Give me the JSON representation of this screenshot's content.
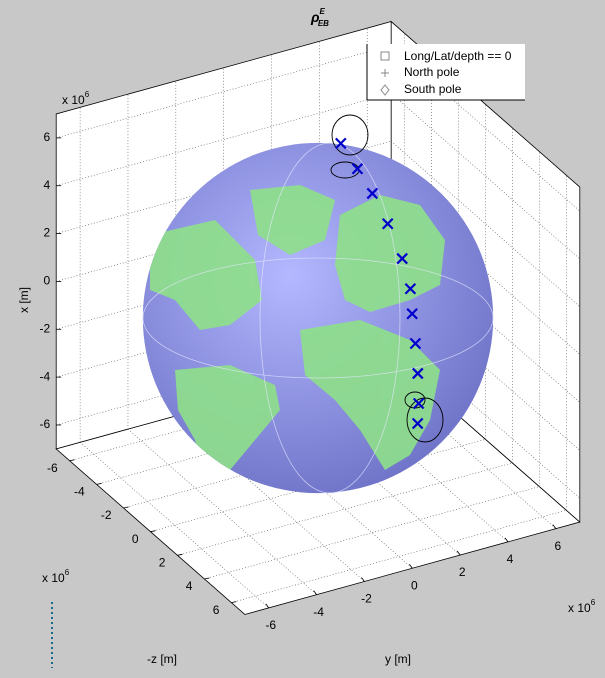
{
  "chart_data": {
    "type": "globe3d",
    "title": {
      "symbol": "ρ",
      "superscript": "E",
      "subscript": "EB"
    },
    "xlabel": "x [m]",
    "ylabel": "y [m]",
    "zlabel": "-z [m]",
    "multiplier": {
      "base": "x 10",
      "power": "6"
    },
    "xlim": [
      -7,
      7
    ],
    "ylim": [
      -7,
      7
    ],
    "zlim": [
      -7,
      7
    ],
    "xticks": [
      -6,
      -4,
      -2,
      0,
      2,
      4,
      6
    ],
    "yticks": [
      -6,
      -4,
      -2,
      0,
      2,
      4,
      6
    ],
    "zticks": [
      -6,
      -4,
      -2,
      0,
      2,
      4,
      6
    ],
    "grid": true,
    "globe_radius": 6.37,
    "legend": {
      "position": "upper right",
      "entries": [
        "Long/Lat/depth == 0",
        "North pole",
        "South pole"
      ]
    },
    "points": {
      "color": "#0000cc",
      "x": [
        5.53,
        6.22,
        5.93,
        5.33,
        4.43,
        3.56,
        2.8,
        1.78,
        0.65,
        -0.61,
        -1.55
      ],
      "y": [
        2.26,
        1.27,
        1.1,
        1.01,
        0.99,
        0.91,
        0.72,
        0.63,
        0.6,
        0.63,
        0.69
      ],
      "minus_z": [
        -2.32,
        0.67,
        2.08,
        3.38,
        4.49,
        5.24,
        5.71,
        6.11,
        6.34,
        6.35,
        6.17
      ]
    }
  }
}
